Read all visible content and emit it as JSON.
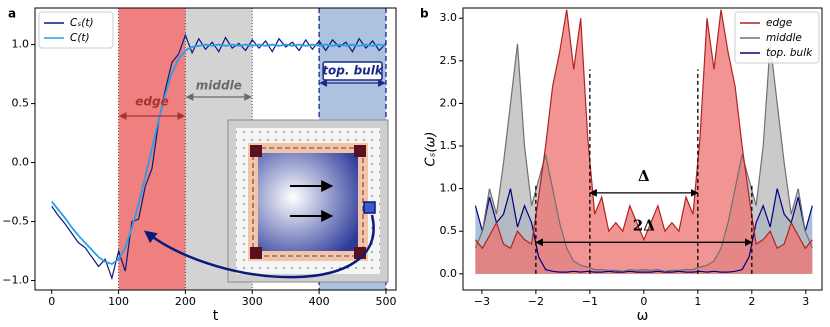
{
  "chart_data": [
    {
      "type": "line",
      "panel_label": "a",
      "xlabel": "t",
      "xlim": [
        -25,
        515
      ],
      "ylim": [
        -1.08,
        1.31
      ],
      "xticks": [
        0,
        100,
        200,
        300,
        400,
        500
      ],
      "yticks": [
        {
          "value": 1.0,
          "label": "1.0"
        },
        {
          "value": 0.5,
          "label": "0.5"
        },
        {
          "value": 0,
          "label": "0.0"
        },
        {
          "value": -0.5,
          "label": "−0.5"
        },
        {
          "value": -1.0,
          "label": "−1.0"
        }
      ],
      "legend": "upper left",
      "regions": [
        {
          "label": "edge",
          "start": 100,
          "end": 200,
          "color": "#f08080",
          "text_color": "#a83232"
        },
        {
          "label": "middle",
          "start": 200,
          "end": 300,
          "color": "#d3d3d3",
          "text_color": "#6a6a6a"
        },
        {
          "label": "top. bulk",
          "start": 400,
          "end": 500,
          "color": "#adc2de",
          "text_color": "#1a2a8a"
        }
      ],
      "x": [
        0,
        10,
        20,
        30,
        40,
        50,
        60,
        70,
        80,
        90,
        100,
        110,
        120,
        130,
        140,
        150,
        160,
        170,
        180,
        190,
        200,
        210,
        220,
        230,
        240,
        250,
        260,
        270,
        280,
        290,
        300,
        310,
        320,
        330,
        340,
        350,
        360,
        370,
        380,
        390,
        400,
        410,
        420,
        430,
        440,
        450,
        460,
        470,
        480,
        490,
        500
      ],
      "series": [
        {
          "name": "Cₛ(t)",
          "color": "#0a1a7a",
          "values": [
            -0.37,
            -0.45,
            -0.52,
            -0.6,
            -0.68,
            -0.72,
            -0.8,
            -0.88,
            -0.82,
            -0.98,
            -0.75,
            -0.92,
            -0.5,
            -0.48,
            -0.2,
            -0.05,
            0.35,
            0.62,
            0.85,
            0.92,
            1.08,
            0.93,
            1.05,
            0.96,
            1.02,
            0.94,
            1.06,
            0.97,
            1.01,
            0.95,
            1.04,
            0.97,
            1.03,
            0.94,
            1.05,
            0.98,
            1.02,
            0.95,
            1.04,
            0.96,
            1.03,
            0.95,
            1.04,
            0.98,
            1.02,
            0.94,
            1.05,
            0.97,
            1.03,
            0.95,
            1.01
          ]
        },
        {
          "name": "C(t)",
          "color": "#2a9fe6",
          "values": [
            -0.33,
            -0.4,
            -0.47,
            -0.55,
            -0.62,
            -0.68,
            -0.74,
            -0.8,
            -0.84,
            -0.86,
            -0.82,
            -0.72,
            -0.55,
            -0.35,
            -0.12,
            0.12,
            0.36,
            0.58,
            0.76,
            0.88,
            0.95,
            0.98,
            0.99,
            1.0,
            0.99,
            1.0,
            0.99,
            1.0,
            0.99,
            1.0,
            0.99,
            1.0,
            0.99,
            1.0,
            0.99,
            1.0,
            0.99,
            1.0,
            0.99,
            1.0,
            0.99,
            1.0,
            0.99,
            1.0,
            0.99,
            1.0,
            0.99,
            1.0,
            0.99,
            1.0,
            0.99
          ]
        }
      ]
    },
    {
      "type": "area",
      "panel_label": "b",
      "xlabel": "ω",
      "ylabel": "Cₛ(ω)",
      "xlim": [
        -3.35,
        3.3
      ],
      "ylim": [
        -0.19,
        3.12
      ],
      "xticks": [
        {
          "value": -3,
          "label": "−3"
        },
        {
          "value": -2,
          "label": "−2"
        },
        {
          "value": -1,
          "label": "−1"
        },
        0,
        1,
        2,
        3
      ],
      "yticks": [
        {
          "value": 0,
          "label": "0.0"
        },
        0.5,
        {
          "value": 1.0,
          "label": "1.0"
        },
        1.5,
        {
          "value": 2.0,
          "label": "2.0"
        },
        2.5,
        {
          "value": 3.0,
          "label": "3.0"
        }
      ],
      "legend": "upper right",
      "gap_markers": [
        {
          "label": "Δ",
          "from": -1,
          "to": 1,
          "y": 0.95,
          "top": 2.4
        },
        {
          "label": "2Δ",
          "from": -2,
          "to": 2,
          "y": 0.37,
          "top": 1.05
        }
      ],
      "x": [
        -3.12,
        -2.99,
        -2.86,
        -2.73,
        -2.6,
        -2.47,
        -2.34,
        -2.21,
        -2.08,
        -1.95,
        -1.82,
        -1.69,
        -1.56,
        -1.43,
        -1.3,
        -1.17,
        -1.04,
        -0.91,
        -0.78,
        -0.65,
        -0.52,
        -0.39,
        -0.26,
        -0.13,
        0,
        0.13,
        0.26,
        0.39,
        0.52,
        0.65,
        0.78,
        0.91,
        1.04,
        1.17,
        1.3,
        1.43,
        1.56,
        1.69,
        1.82,
        1.95,
        2.08,
        2.21,
        2.34,
        2.47,
        2.6,
        2.73,
        2.86,
        2.99,
        3.12
      ],
      "series": [
        {
          "name": "edge",
          "color": "#b22222",
          "fill": "#ef7070",
          "values": [
            0.4,
            0.3,
            0.45,
            0.6,
            0.35,
            0.3,
            0.5,
            0.4,
            0.35,
            0.9,
            1.5,
            2.2,
            2.6,
            3.1,
            2.4,
            3.0,
            1.6,
            0.7,
            0.9,
            0.5,
            0.6,
            0.5,
            0.8,
            0.6,
            0.4,
            0.6,
            0.8,
            0.5,
            0.6,
            0.5,
            0.9,
            0.7,
            1.6,
            3.0,
            2.4,
            3.1,
            2.6,
            2.2,
            1.5,
            0.9,
            0.35,
            0.4,
            0.5,
            0.3,
            0.35,
            0.6,
            0.45,
            0.3,
            0.4
          ]
        },
        {
          "name": "middle",
          "color": "#707070",
          "fill": "#b8b8b8",
          "values": [
            0.3,
            0.5,
            1.0,
            0.7,
            1.3,
            2.0,
            2.7,
            1.5,
            0.8,
            1.1,
            1.4,
            1.0,
            0.6,
            0.3,
            0.15,
            0.1,
            0.08,
            0.05,
            0.05,
            0.04,
            0.04,
            0.03,
            0.05,
            0.04,
            0.05,
            0.04,
            0.05,
            0.03,
            0.04,
            0.04,
            0.05,
            0.05,
            0.08,
            0.1,
            0.15,
            0.3,
            0.6,
            1.0,
            1.4,
            1.1,
            0.8,
            1.5,
            2.7,
            2.0,
            1.3,
            0.7,
            1.0,
            0.5,
            0.3
          ]
        },
        {
          "name": "top. bulk",
          "color": "#000080",
          "fill": "#a9bfdc",
          "values": [
            0.8,
            0.5,
            0.9,
            0.6,
            0.7,
            1.0,
            0.55,
            0.8,
            0.6,
            0.2,
            0.05,
            0.03,
            0.02,
            0.02,
            0.03,
            0.02,
            0.03,
            0.02,
            0.02,
            0.03,
            0.02,
            0.02,
            0.03,
            0.02,
            0.02,
            0.02,
            0.03,
            0.02,
            0.02,
            0.03,
            0.02,
            0.02,
            0.03,
            0.02,
            0.03,
            0.02,
            0.02,
            0.03,
            0.05,
            0.2,
            0.6,
            0.8,
            0.55,
            1.0,
            0.7,
            0.6,
            0.9,
            0.5,
            0.8
          ]
        }
      ]
    }
  ]
}
